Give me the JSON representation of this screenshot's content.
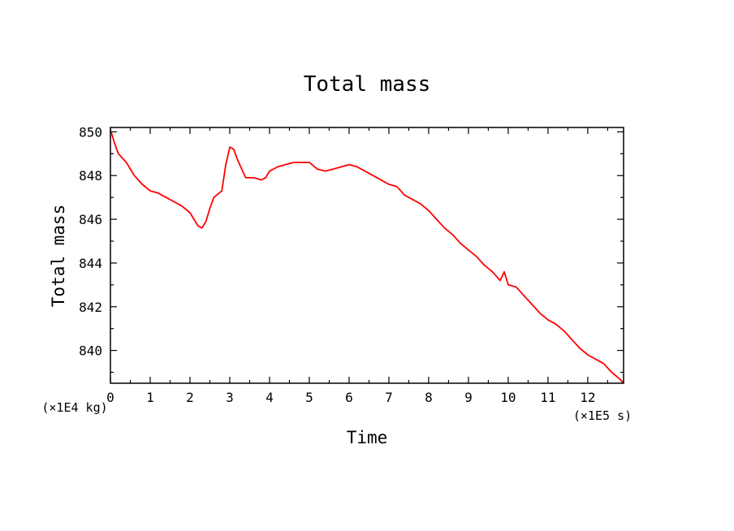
{
  "chart_data": {
    "type": "line",
    "title": "Total mass",
    "xlabel": "Time",
    "ylabel": "Total mass",
    "x_unit": "(×1E5 s)",
    "y_unit": "(×1E4 kg)",
    "xlim": [
      0,
      12.9
    ],
    "ylim": [
      838.5,
      850.2
    ],
    "x_ticks": [
      0,
      1,
      2,
      3,
      4,
      5,
      6,
      7,
      8,
      9,
      10,
      11,
      12
    ],
    "y_ticks": [
      840,
      842,
      844,
      846,
      848,
      850
    ],
    "grid": false,
    "series": [
      {
        "color": "#ff0000",
        "x": [
          0,
          0.1,
          0.2,
          0.4,
          0.6,
          0.8,
          1.0,
          1.2,
          1.4,
          1.6,
          1.8,
          2.0,
          2.1,
          2.2,
          2.3,
          2.4,
          2.5,
          2.6,
          2.8,
          2.9,
          3.0,
          3.1,
          3.2,
          3.3,
          3.4,
          3.6,
          3.8,
          3.9,
          4.0,
          4.2,
          4.4,
          4.6,
          4.8,
          5.0,
          5.2,
          5.4,
          5.6,
          5.8,
          6.0,
          6.2,
          6.4,
          6.6,
          6.8,
          7.0,
          7.2,
          7.4,
          7.6,
          7.8,
          8.0,
          8.2,
          8.4,
          8.6,
          8.8,
          9.0,
          9.2,
          9.4,
          9.6,
          9.8,
          9.9,
          10.0,
          10.2,
          10.4,
          10.6,
          10.8,
          11.0,
          11.2,
          11.4,
          11.6,
          11.8,
          12.0,
          12.2,
          12.4,
          12.6,
          12.8,
          12.9
        ],
        "y": [
          850.1,
          849.5,
          849.0,
          848.6,
          848.0,
          847.6,
          847.3,
          847.2,
          847.0,
          846.8,
          846.6,
          846.3,
          846.0,
          845.7,
          845.6,
          845.9,
          846.5,
          847.0,
          847.3,
          848.5,
          849.3,
          849.2,
          848.7,
          848.3,
          847.9,
          847.9,
          847.8,
          847.9,
          848.2,
          848.4,
          848.5,
          848.6,
          848.6,
          848.6,
          848.3,
          848.2,
          848.3,
          848.4,
          848.5,
          848.4,
          848.2,
          848.0,
          847.8,
          847.6,
          847.5,
          847.1,
          846.9,
          846.7,
          846.4,
          846.0,
          845.6,
          845.3,
          844.9,
          844.6,
          844.3,
          843.9,
          843.6,
          843.2,
          843.6,
          843.0,
          842.9,
          842.5,
          842.1,
          841.7,
          841.4,
          841.2,
          840.9,
          840.5,
          840.1,
          839.8,
          839.6,
          839.4,
          839.0,
          838.7,
          838.5
        ]
      }
    ]
  }
}
